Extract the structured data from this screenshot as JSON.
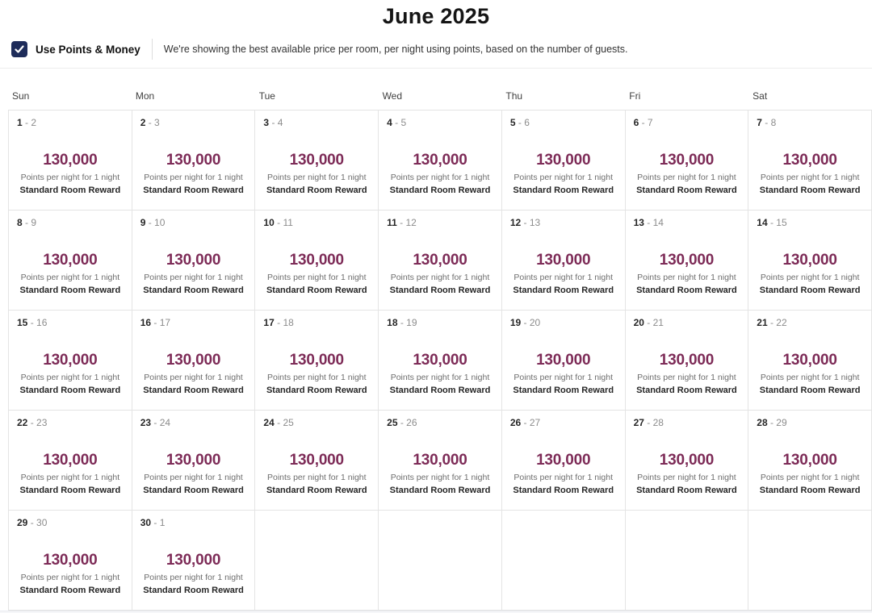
{
  "page": {
    "title": "June 2025"
  },
  "filter": {
    "checkbox_label": "Use Points & Money",
    "checkbox_checked": true,
    "description": "We're showing the best available price per room, per night using points, based on the number of guests."
  },
  "calendar": {
    "day_headers": [
      "Sun",
      "Mon",
      "Tue",
      "Wed",
      "Thu",
      "Fri",
      "Sat"
    ],
    "weeks": [
      [
        {
          "start": "1",
          "end": "2",
          "points": "130,000",
          "subtext": "Points per night for 1 night",
          "room": "Standard Room Reward"
        },
        {
          "start": "2",
          "end": "3",
          "points": "130,000",
          "subtext": "Points per night for 1 night",
          "room": "Standard Room Reward"
        },
        {
          "start": "3",
          "end": "4",
          "points": "130,000",
          "subtext": "Points per night for 1 night",
          "room": "Standard Room Reward"
        },
        {
          "start": "4",
          "end": "5",
          "points": "130,000",
          "subtext": "Points per night for 1 night",
          "room": "Standard Room Reward"
        },
        {
          "start": "5",
          "end": "6",
          "points": "130,000",
          "subtext": "Points per night for 1 night",
          "room": "Standard Room Reward"
        },
        {
          "start": "6",
          "end": "7",
          "points": "130,000",
          "subtext": "Points per night for 1 night",
          "room": "Standard Room Reward"
        },
        {
          "start": "7",
          "end": "8",
          "points": "130,000",
          "subtext": "Points per night for 1 night",
          "room": "Standard Room Reward"
        }
      ],
      [
        {
          "start": "8",
          "end": "9",
          "points": "130,000",
          "subtext": "Points per night for 1 night",
          "room": "Standard Room Reward"
        },
        {
          "start": "9",
          "end": "10",
          "points": "130,000",
          "subtext": "Points per night for 1 night",
          "room": "Standard Room Reward"
        },
        {
          "start": "10",
          "end": "11",
          "points": "130,000",
          "subtext": "Points per night for 1 night",
          "room": "Standard Room Reward"
        },
        {
          "start": "11",
          "end": "12",
          "points": "130,000",
          "subtext": "Points per night for 1 night",
          "room": "Standard Room Reward"
        },
        {
          "start": "12",
          "end": "13",
          "points": "130,000",
          "subtext": "Points per night for 1 night",
          "room": "Standard Room Reward"
        },
        {
          "start": "13",
          "end": "14",
          "points": "130,000",
          "subtext": "Points per night for 1 night",
          "room": "Standard Room Reward"
        },
        {
          "start": "14",
          "end": "15",
          "points": "130,000",
          "subtext": "Points per night for 1 night",
          "room": "Standard Room Reward"
        }
      ],
      [
        {
          "start": "15",
          "end": "16",
          "points": "130,000",
          "subtext": "Points per night for 1 night",
          "room": "Standard Room Reward"
        },
        {
          "start": "16",
          "end": "17",
          "points": "130,000",
          "subtext": "Points per night for 1 night",
          "room": "Standard Room Reward"
        },
        {
          "start": "17",
          "end": "18",
          "points": "130,000",
          "subtext": "Points per night for 1 night",
          "room": "Standard Room Reward"
        },
        {
          "start": "18",
          "end": "19",
          "points": "130,000",
          "subtext": "Points per night for 1 night",
          "room": "Standard Room Reward"
        },
        {
          "start": "19",
          "end": "20",
          "points": "130,000",
          "subtext": "Points per night for 1 night",
          "room": "Standard Room Reward"
        },
        {
          "start": "20",
          "end": "21",
          "points": "130,000",
          "subtext": "Points per night for 1 night",
          "room": "Standard Room Reward"
        },
        {
          "start": "21",
          "end": "22",
          "points": "130,000",
          "subtext": "Points per night for 1 night",
          "room": "Standard Room Reward"
        }
      ],
      [
        {
          "start": "22",
          "end": "23",
          "points": "130,000",
          "subtext": "Points per night for 1 night",
          "room": "Standard Room Reward"
        },
        {
          "start": "23",
          "end": "24",
          "points": "130,000",
          "subtext": "Points per night for 1 night",
          "room": "Standard Room Reward"
        },
        {
          "start": "24",
          "end": "25",
          "points": "130,000",
          "subtext": "Points per night for 1 night",
          "room": "Standard Room Reward"
        },
        {
          "start": "25",
          "end": "26",
          "points": "130,000",
          "subtext": "Points per night for 1 night",
          "room": "Standard Room Reward"
        },
        {
          "start": "26",
          "end": "27",
          "points": "130,000",
          "subtext": "Points per night for 1 night",
          "room": "Standard Room Reward"
        },
        {
          "start": "27",
          "end": "28",
          "points": "130,000",
          "subtext": "Points per night for 1 night",
          "room": "Standard Room Reward"
        },
        {
          "start": "28",
          "end": "29",
          "points": "130,000",
          "subtext": "Points per night for 1 night",
          "room": "Standard Room Reward"
        }
      ],
      [
        {
          "start": "29",
          "end": "30",
          "points": "130,000",
          "subtext": "Points per night for 1 night",
          "room": "Standard Room Reward"
        },
        {
          "start": "30",
          "end": "1",
          "points": "130,000",
          "subtext": "Points per night for 1 night",
          "room": "Standard Room Reward"
        },
        null,
        null,
        null,
        null,
        null
      ]
    ]
  },
  "colors": {
    "points_text": "#7d2b57",
    "checkbox_bg": "#1e2c5a",
    "grid_border": "#e4e4e4"
  }
}
